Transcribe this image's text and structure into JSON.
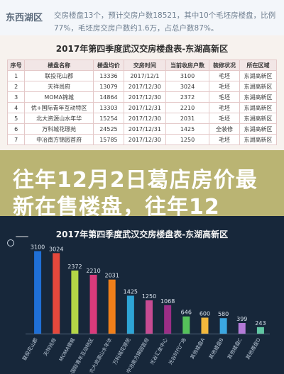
{
  "header": {
    "title": "东西湖区",
    "summary": "交房楼盘13个，预计交房户数18521，其中10个毛坯房楼盘，比例77%，毛坯房交房户数约1.6万，占总户数87%。"
  },
  "table": {
    "title": "2017年第四季度武汉交房楼盘表-东湖高新区",
    "headers": [
      "序号",
      "楼盘名称",
      "楼盘均价",
      "交房时间",
      "当前收房户数",
      "装修状况",
      "所在区域"
    ],
    "rows": [
      [
        "1",
        "联投花山郡",
        "13336",
        "2017/12/1",
        "3100",
        "毛坯",
        "东湖高新区"
      ],
      [
        "2",
        "天祥尚府",
        "13079",
        "2017/12/30",
        "3024",
        "毛坯",
        "东湖高新区"
      ],
      [
        "3",
        "MOMA锦城",
        "14864",
        "2017/12/30",
        "2372",
        "毛坯",
        "东湖高新区"
      ],
      [
        "4",
        "优+国际青年互动特区",
        "13303",
        "2017/12/31",
        "2210",
        "毛坯",
        "东湖高新区"
      ],
      [
        "5",
        "北大资源山水年华",
        "15254",
        "2017/12/30",
        "2031",
        "毛坯",
        "东湖高新区"
      ],
      [
        "6",
        "万科城花璟苑",
        "24525",
        "2017/12/31",
        "1425",
        "全装修",
        "东湖高新区"
      ],
      [
        "7",
        "中冶南方锦园首府",
        "15785",
        "2017/12/30",
        "1250",
        "毛坯",
        "东湖高新区"
      ]
    ]
  },
  "overlay": {
    "headline": "往年12月2日葛店房价最新在售楼盘，往年12"
  },
  "chart_data": {
    "type": "bar",
    "title": "2017年第四季度武汉交房楼盘表-东湖高新区",
    "categories": [
      "联投花山郡",
      "天祥尚府",
      "MOMA锦城",
      "优+国际青年互动特区",
      "北大资源山水年华",
      "万科城花璟苑",
      "中冶南方锦园首府",
      "光谷汇金中心",
      "光谷时代广场",
      "其他楼盘A",
      "其他楼盘B",
      "其他楼盘C",
      "其他楼盘D"
    ],
    "values": [
      3100,
      3024,
      2372,
      2210,
      2031,
      1425,
      1250,
      1068,
      646,
      600,
      580,
      399,
      243
    ],
    "value_labels": [
      "3100",
      "3024",
      "2372",
      "2210",
      "2031",
      "1425",
      "1250",
      "1068",
      "646",
      "600",
      "580",
      "399",
      "243"
    ],
    "colors": [
      "#1f6fd6",
      "#e6483c",
      "#b4d646",
      "#d93a7b",
      "#f07f1a",
      "#2ea5d6",
      "#c64b92",
      "#9b2e86",
      "#55c15a",
      "#f2b83c",
      "#3ba7e1",
      "#b47ad8",
      "#60c7a3"
    ],
    "ylim": [
      0,
      3300
    ]
  }
}
